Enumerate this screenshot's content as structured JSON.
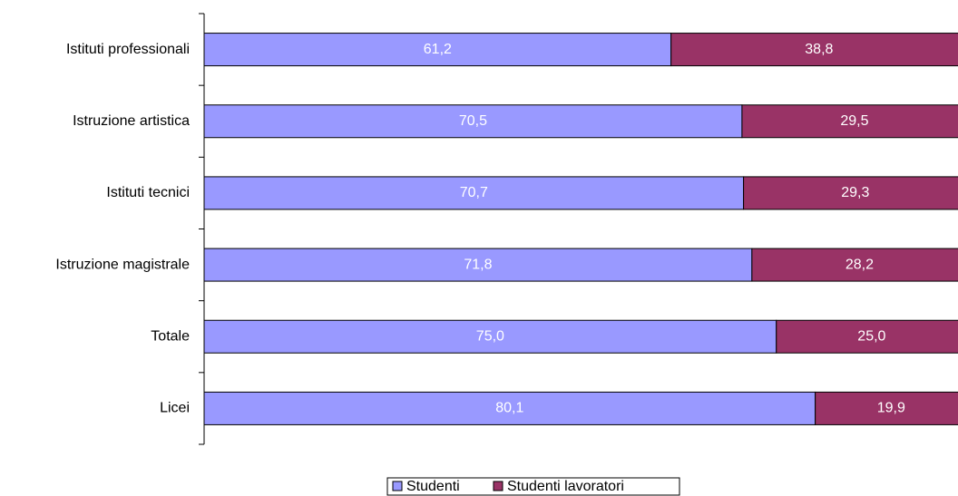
{
  "chart_data": {
    "type": "stacked_hbar",
    "categories": [
      "Istituti professionali",
      "Istruzione artistica",
      "Istituti tecnici",
      "Istruzione magistrale",
      "Totale",
      "Licei"
    ],
    "series": [
      {
        "name": "Studenti",
        "color": "#9999ff",
        "values": [
          61.2,
          70.5,
          70.7,
          71.8,
          75.0,
          80.1
        ],
        "value_labels": [
          "61,2",
          "70,5",
          "70,7",
          "71,8",
          "75,0",
          "80,1"
        ]
      },
      {
        "name": "Studenti lavoratori",
        "color": "#993366",
        "values": [
          38.8,
          29.5,
          29.3,
          28.2,
          25.0,
          19.9
        ],
        "value_labels": [
          "38,8",
          "29,5",
          "29,3",
          "28,2",
          "25,0",
          "19,9"
        ]
      }
    ],
    "legend": "bottom"
  }
}
